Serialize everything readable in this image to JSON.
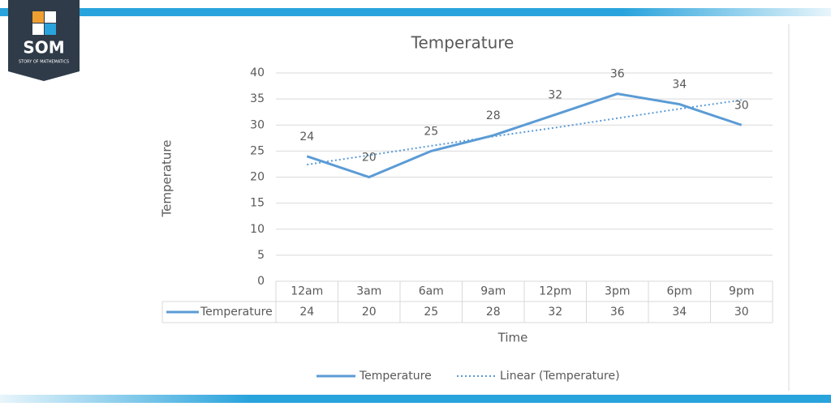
{
  "logo": {
    "title": "SOM",
    "subtitle": "STORY OF MATHEMATICS"
  },
  "chart_data": {
    "type": "line",
    "title": "Temperature",
    "x_label": "Time",
    "y_label": "Temperature",
    "categories": [
      "12am",
      "3am",
      "6am",
      "9am",
      "12pm",
      "3pm",
      "6pm",
      "9pm"
    ],
    "series": [
      {
        "name": "Temperature",
        "color": "#5b9bd5",
        "values": [
          24,
          20,
          25,
          28,
          32,
          36,
          34,
          30
        ],
        "data_labels": true
      },
      {
        "name": "Linear (Temperature)",
        "color": "#5b9bd5",
        "dotted": true,
        "values": [
          22.4,
          24.2,
          26.0,
          27.8,
          29.5,
          31.3,
          33.1,
          34.8
        ]
      }
    ],
    "ylim": [
      0,
      40
    ],
    "yticks": [
      0,
      5,
      10,
      15,
      20,
      25,
      30,
      35,
      40
    ],
    "grid": true,
    "data_table": true,
    "legend": "bottom"
  }
}
